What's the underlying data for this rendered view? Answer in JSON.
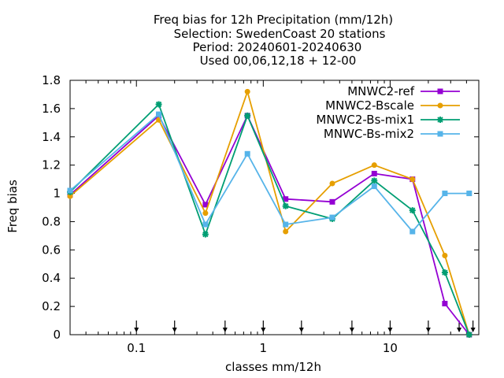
{
  "chart_data": {
    "type": "line",
    "title_lines": [
      "Freq bias  for 12h Precipitation (mm/12h)",
      "Selection: SwedenCoast     20 stations",
      "Period: 20240601-20240630",
      "Used 00,06,12,18 + 12-00"
    ],
    "xlabel": "classes mm/12h",
    "ylabel": "Freq bias",
    "x_scale": "log",
    "xlim": [
      0.03,
      50
    ],
    "ylim": [
      0,
      1.8
    ],
    "x_ticks": [
      0.1,
      1,
      10
    ],
    "x_tick_labels": [
      "0.1",
      "1",
      "10"
    ],
    "y_ticks": [
      0,
      0.2,
      0.4,
      0.6,
      0.8,
      1,
      1.2,
      1.4,
      1.6,
      1.8
    ],
    "y_tick_labels": [
      "0",
      "0.2",
      "0.4",
      "0.6",
      "0.8",
      "1",
      "1.2",
      "1.4",
      "1.6",
      "1.8"
    ],
    "class_markers": [
      0.1,
      0.2,
      0.5,
      1,
      2,
      5,
      10,
      20,
      35,
      45
    ],
    "legend_position": "top-right",
    "grid": false,
    "x": [
      0.03,
      0.15,
      0.35,
      0.75,
      1.5,
      3.5,
      7.5,
      15,
      27,
      42
    ],
    "series": [
      {
        "name": "MNWC2-ref",
        "color": "#9400d3",
        "marker": "square",
        "values": [
          0.99,
          1.55,
          0.92,
          1.55,
          0.96,
          0.94,
          1.14,
          1.1,
          0.22,
          0.0
        ]
      },
      {
        "name": "MNWC2-Bscale",
        "color": "#e69f00",
        "marker": "circle",
        "values": [
          0.98,
          1.52,
          0.86,
          1.72,
          0.73,
          1.07,
          1.2,
          1.1,
          0.56,
          0.0
        ]
      },
      {
        "name": "MNWC2-Bs-mix1",
        "color": "#009e73",
        "marker": "star",
        "values": [
          1.01,
          1.63,
          0.71,
          1.55,
          0.91,
          0.82,
          1.09,
          0.88,
          0.44,
          0.0
        ]
      },
      {
        "name": "MNWC-Bs-mix2",
        "color": "#56b4e9",
        "marker": "square",
        "values": [
          1.02,
          1.56,
          0.78,
          1.28,
          0.78,
          0.83,
          1.05,
          0.73,
          1.0,
          1.0
        ]
      }
    ]
  }
}
